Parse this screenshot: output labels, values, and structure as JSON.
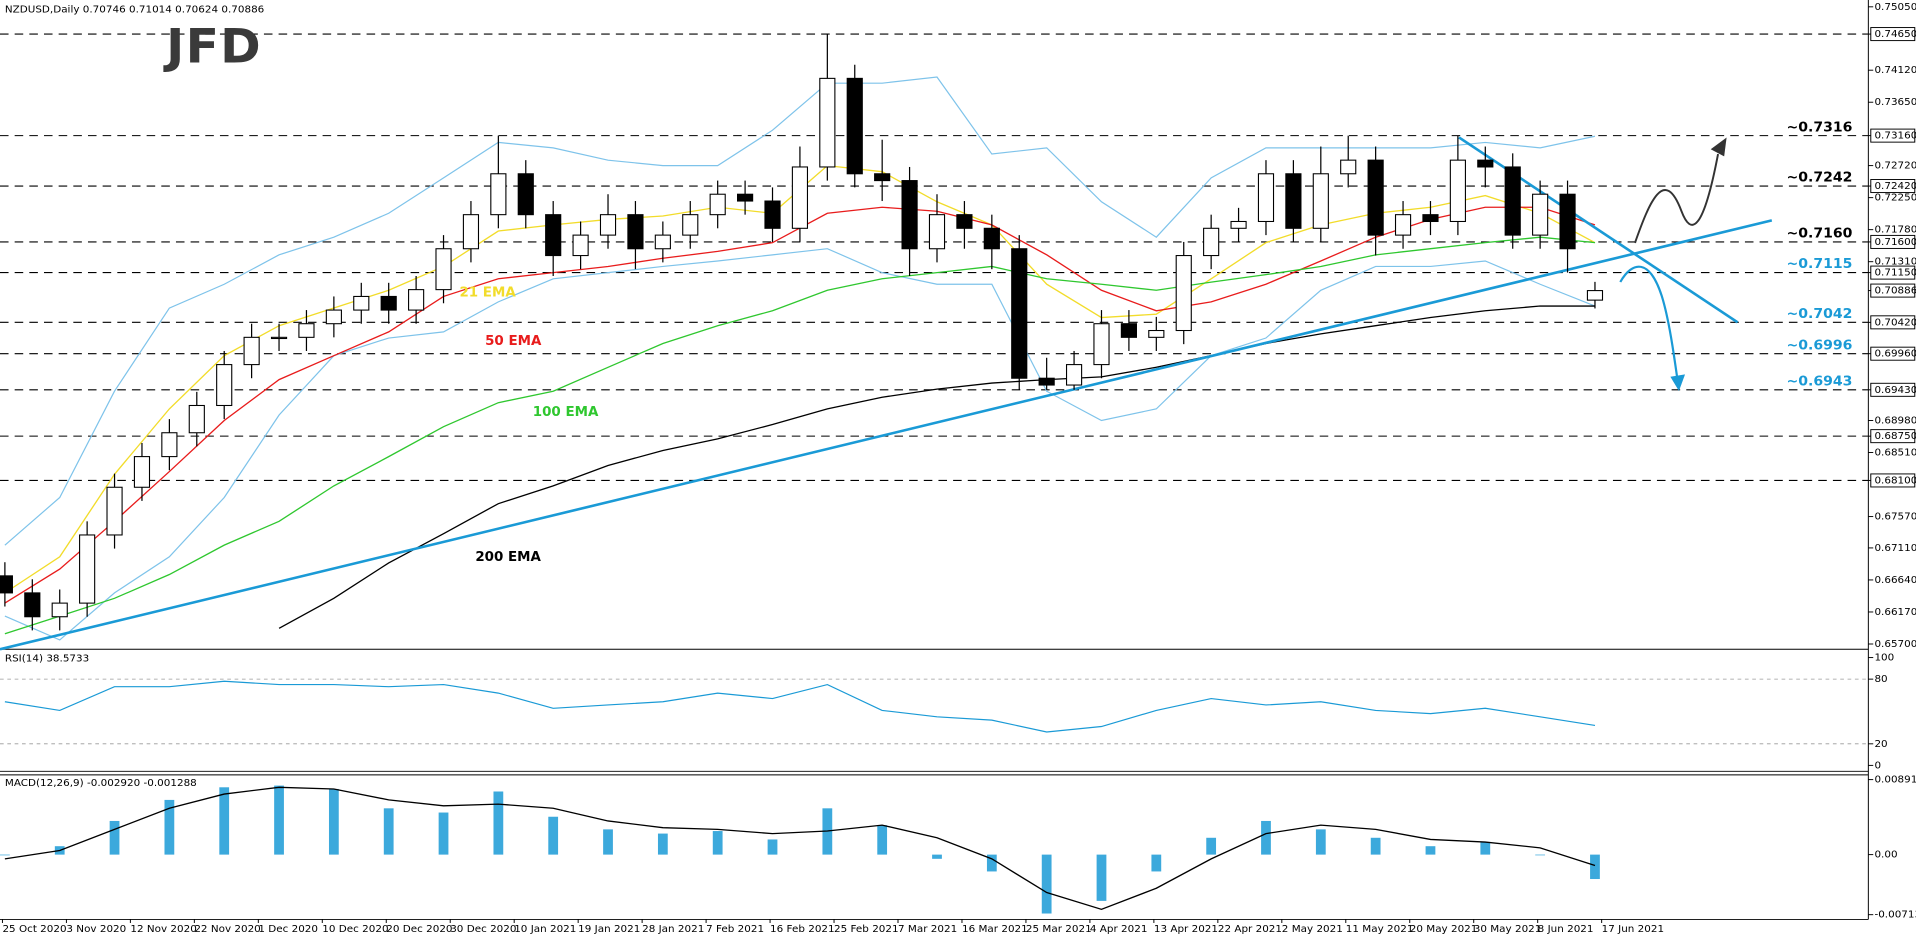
{
  "chart_data": [
    {
      "type": "candlestick",
      "title": "NZDUSD,Daily  0.70746 0.71014 0.70624 0.70886",
      "logo": "JFD",
      "up_color": "#ffffff",
      "down_color": "#000000",
      "open": [
        0.667,
        0.6645,
        0.661,
        0.663,
        0.673,
        0.68,
        0.6845,
        0.688,
        0.692,
        0.698,
        0.702,
        0.702,
        0.704,
        0.706,
        0.708,
        0.706,
        0.709,
        0.715,
        0.72,
        0.726,
        0.72,
        0.714,
        0.717,
        0.72,
        0.715,
        0.717,
        0.72,
        0.723,
        0.722,
        0.718,
        0.727,
        0.74,
        0.726,
        0.725,
        0.715,
        0.72,
        0.718,
        0.715,
        0.696,
        0.695,
        0.698,
        0.704,
        0.702,
        0.703,
        0.714,
        0.718,
        0.719,
        0.726,
        0.718,
        0.726,
        0.728,
        0.717,
        0.72,
        0.719,
        0.728,
        0.727,
        0.717,
        0.723,
        0.70746
      ],
      "high": [
        0.669,
        0.6665,
        0.665,
        0.675,
        0.682,
        0.6865,
        0.69,
        0.694,
        0.7,
        0.704,
        0.704,
        0.706,
        0.708,
        0.71,
        0.71,
        0.711,
        0.717,
        0.722,
        0.7316,
        0.728,
        0.722,
        0.719,
        0.723,
        0.722,
        0.719,
        0.722,
        0.725,
        0.725,
        0.724,
        0.73,
        0.7465,
        0.742,
        0.731,
        0.727,
        0.723,
        0.722,
        0.72,
        0.717,
        0.699,
        0.7,
        0.706,
        0.706,
        0.705,
        0.716,
        0.72,
        0.721,
        0.728,
        0.728,
        0.73,
        0.7316,
        0.73,
        0.722,
        0.722,
        0.7316,
        0.73,
        0.729,
        0.725,
        0.725,
        0.71014
      ],
      "low": [
        0.6625,
        0.659,
        0.659,
        0.661,
        0.671,
        0.678,
        0.6825,
        0.686,
        0.69,
        0.696,
        0.7,
        0.7,
        0.702,
        0.704,
        0.704,
        0.704,
        0.707,
        0.713,
        0.718,
        0.718,
        0.711,
        0.712,
        0.715,
        0.712,
        0.713,
        0.715,
        0.718,
        0.72,
        0.716,
        0.716,
        0.725,
        0.724,
        0.722,
        0.711,
        0.713,
        0.715,
        0.712,
        0.6943,
        0.6943,
        0.6943,
        0.696,
        0.7,
        0.7,
        0.701,
        0.712,
        0.716,
        0.717,
        0.716,
        0.716,
        0.724,
        0.714,
        0.715,
        0.717,
        0.717,
        0.724,
        0.715,
        0.715,
        0.7115,
        0.70624
      ],
      "close": [
        0.6645,
        0.661,
        0.663,
        0.673,
        0.68,
        0.6845,
        0.688,
        0.692,
        0.698,
        0.702,
        0.702,
        0.704,
        0.706,
        0.708,
        0.706,
        0.709,
        0.715,
        0.72,
        0.726,
        0.72,
        0.714,
        0.717,
        0.72,
        0.715,
        0.717,
        0.72,
        0.723,
        0.722,
        0.718,
        0.727,
        0.74,
        0.726,
        0.725,
        0.715,
        0.72,
        0.718,
        0.715,
        0.696,
        0.695,
        0.698,
        0.704,
        0.702,
        0.703,
        0.714,
        0.718,
        0.719,
        0.726,
        0.718,
        0.726,
        0.728,
        0.717,
        0.72,
        0.719,
        0.728,
        0.727,
        0.717,
        0.723,
        0.715,
        0.70886
      ],
      "series": [
        {
          "name": "21 EMA",
          "color": "#f2dc2a",
          "values": [
            0.6645,
            0.6698,
            0.6819,
            0.6915,
            0.6993,
            0.7037,
            0.7063,
            0.7089,
            0.7124,
            0.7176,
            0.7185,
            0.7193,
            0.7198,
            0.7211,
            0.7202,
            0.7272,
            0.7263,
            0.7219,
            0.7185,
            0.7098,
            0.7049,
            0.7054,
            0.7106,
            0.7159,
            0.7185,
            0.7202,
            0.7211,
            0.7228,
            0.7202,
            0.7159
          ]
        },
        {
          "name": "50 EMA",
          "color": "#e81c1c",
          "values": [
            0.663,
            0.668,
            0.675,
            0.6823,
            0.6898,
            0.6958,
            0.6993,
            0.7028,
            0.708,
            0.7106,
            0.7115,
            0.7124,
            0.7136,
            0.7146,
            0.7159,
            0.7202,
            0.7211,
            0.7205,
            0.7185,
            0.7141,
            0.7089,
            0.7059,
            0.7072,
            0.7098,
            0.7132,
            0.7167,
            0.7193,
            0.7211,
            0.7211,
            0.7185
          ]
        },
        {
          "name": "100 EMA",
          "color": "#2fc72f",
          "values": [
            0.6585,
            0.6611,
            0.6637,
            0.6672,
            0.6715,
            0.675,
            0.6802,
            0.6845,
            0.6889,
            0.6924,
            0.6941,
            0.6976,
            0.7011,
            0.7037,
            0.7059,
            0.7089,
            0.7106,
            0.7115,
            0.7124,
            0.7106,
            0.7098,
            0.7089,
            0.7101,
            0.7112,
            0.7124,
            0.7141,
            0.715,
            0.7159,
            0.7167,
            0.7159
          ]
        },
        {
          "name": "200 EMA",
          "color": "#000000",
          "values": [
            null,
            null,
            null,
            null,
            null,
            0.6593,
            0.6637,
            0.6689,
            0.6732,
            0.6776,
            0.6802,
            0.6832,
            0.6854,
            0.6871,
            0.6892,
            0.6915,
            0.6932,
            0.6944,
            0.6953,
            0.6958,
            0.6962,
            0.6976,
            0.6993,
            0.7011,
            0.7025,
            0.7037,
            0.7049,
            0.7059,
            0.7066,
            0.7066
          ]
        }
      ],
      "bands": {
        "color": "#7ec3ea",
        "upper": [
          0.6715,
          0.6785,
          0.6941,
          0.7063,
          0.7098,
          0.7141,
          0.7167,
          0.7202,
          0.7254,
          0.7306,
          0.7298,
          0.728,
          0.7272,
          0.7272,
          0.7324,
          0.7393,
          0.7393,
          0.7402,
          0.7289,
          0.7298,
          0.7219,
          0.7167,
          0.7254,
          0.7298,
          0.7298,
          0.7298,
          0.7298,
          0.7306,
          0.7298,
          0.7315
        ],
        "lower": [
          0.6611,
          0.6576,
          0.6645,
          0.6698,
          0.6785,
          0.6906,
          0.6993,
          0.7019,
          0.7028,
          0.7072,
          0.7106,
          0.7115,
          0.7124,
          0.7132,
          0.7141,
          0.715,
          0.7115,
          0.7098,
          0.7098,
          0.6941,
          0.6898,
          0.6915,
          0.6993,
          0.7019,
          0.7089,
          0.7124,
          0.7124,
          0.7132,
          0.7098,
          0.7066
        ]
      },
      "annotations": [
        {
          "text": "~0.7316",
          "value": 0.7316,
          "color": "#000000"
        },
        {
          "text": "~0.7242",
          "value": 0.7242,
          "color": "#000000"
        },
        {
          "text": "~0.7160",
          "value": 0.716,
          "color": "#000000"
        },
        {
          "text": "~0.7115",
          "value": 0.7115,
          "color": "#1a9ad6"
        },
        {
          "text": "~0.7042",
          "value": 0.7042,
          "color": "#1a9ad6"
        },
        {
          "text": "~0.6996",
          "value": 0.6996,
          "color": "#1a9ad6"
        },
        {
          "text": "~0.6943",
          "value": 0.6943,
          "color": "#1a9ad6"
        }
      ],
      "ylim": [
        0.6564,
        0.7515
      ],
      "yticks": [
        {
          "value": 0.7505,
          "label": "0.75050"
        },
        {
          "value": 0.7465,
          "label": "0.74650",
          "boxed": true
        },
        {
          "value": 0.7412,
          "label": "0.74120"
        },
        {
          "value": 0.7365,
          "label": "0.73650"
        },
        {
          "value": 0.7316,
          "label": "0.73160",
          "boxed": true
        },
        {
          "value": 0.7272,
          "label": "0.72720"
        },
        {
          "value": 0.7242,
          "label": "0.72420",
          "boxed": true
        },
        {
          "value": 0.7225,
          "label": "0.72250"
        },
        {
          "value": 0.7178,
          "label": "0.71780"
        },
        {
          "value": 0.716,
          "label": "0.71600",
          "boxed": true
        },
        {
          "value": 0.7131,
          "label": "0.71310"
        },
        {
          "value": 0.7115,
          "label": "0.71150",
          "boxed": true
        },
        {
          "value": 0.70886,
          "label": "0.70886",
          "current": true
        },
        {
          "value": 0.7042,
          "label": "0.70420",
          "boxed": true
        },
        {
          "value": 0.6996,
          "label": "0.69960",
          "boxed": true
        },
        {
          "value": 0.6943,
          "label": "0.69430",
          "boxed": true
        },
        {
          "value": 0.6898,
          "label": "0.68980"
        },
        {
          "value": 0.6875,
          "label": "0.68750",
          "boxed": true
        },
        {
          "value": 0.6851,
          "label": "0.68510"
        },
        {
          "value": 0.681,
          "label": "0.68100",
          "boxed": true
        },
        {
          "value": 0.6757,
          "label": "0.67570"
        },
        {
          "value": 0.6711,
          "label": "0.67110"
        },
        {
          "value": 0.6664,
          "label": "0.66640"
        },
        {
          "value": 0.6617,
          "label": "0.66170"
        },
        {
          "value": 0.657,
          "label": "0.65700"
        }
      ],
      "date_labels": [
        "25 Oct 2020",
        "3 Nov 2020",
        "12 Nov 2020",
        "22 Nov 2020",
        "1 Dec 2020",
        "10 Dec 2020",
        "20 Dec 2020",
        "30 Dec 2020",
        "10 Jan 2021",
        "19 Jan 2021",
        "28 Jan 2021",
        "7 Feb 2021",
        "16 Feb 2021",
        "25 Feb 2021",
        "7 Mar 2021",
        "16 Mar 2021",
        "25 Mar 2021",
        "4 Apr 2021",
        "13 Apr 2021",
        "22 Apr 2021",
        "2 May 2021",
        "11 May 2021",
        "20 May 2021",
        "30 May 2021",
        "8 Jun 2021",
        "17 Jun 2021"
      ]
    },
    {
      "type": "line",
      "title": "RSI(14) 38.5733",
      "color": "#1a9ad6",
      "values": [
        59,
        51,
        73,
        73,
        78,
        75,
        75,
        73,
        75,
        67,
        53,
        56,
        59,
        67,
        62,
        75,
        51,
        45,
        42,
        31,
        36,
        51,
        62,
        56,
        59,
        51,
        48,
        53,
        45,
        37
      ],
      "ylim": [
        0,
        100
      ],
      "yticks": [
        100,
        80,
        20,
        0
      ]
    },
    {
      "type": "macd",
      "title": "MACD(12,26,9) -0.002920 -0.001288",
      "histogram_color": "#1a9ad6",
      "signal_color": "#000000",
      "histogram": [
        0.0,
        0.001,
        0.004,
        0.0065,
        0.008,
        0.0082,
        0.0078,
        0.0055,
        0.005,
        0.0075,
        0.0045,
        0.003,
        0.0025,
        0.0028,
        0.0018,
        0.0055,
        0.0035,
        -0.0005,
        -0.002,
        -0.007,
        -0.0055,
        -0.002,
        0.002,
        0.004,
        0.003,
        0.002,
        0.001,
        0.0015,
        0.0,
        -0.0029
      ],
      "signal": [
        -0.0005,
        0.0005,
        0.003,
        0.0055,
        0.0072,
        0.008,
        0.0078,
        0.0065,
        0.0058,
        0.006,
        0.0055,
        0.004,
        0.0032,
        0.003,
        0.0025,
        0.0028,
        0.0035,
        0.002,
        -0.0005,
        -0.0045,
        -0.0065,
        -0.004,
        -0.0005,
        0.0025,
        0.0035,
        0.003,
        0.0018,
        0.0015,
        0.0008,
        -0.0013
      ],
      "ylim": [
        -0.007137,
        0.008913
      ],
      "yticks": [
        0.008913,
        {
          "value": 0,
          "label": "0.00"
        },
        -0.007137
      ]
    }
  ]
}
